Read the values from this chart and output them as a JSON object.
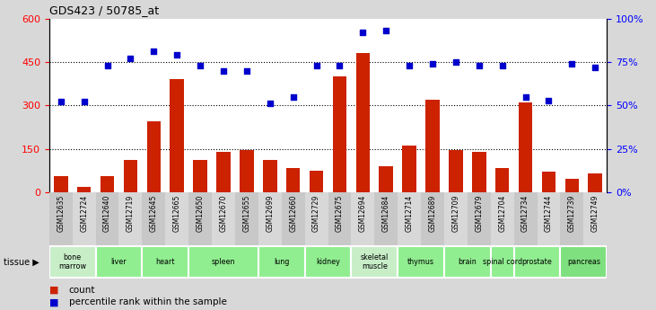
{
  "title": "GDS423 / 50785_at",
  "samples": [
    "GSM12635",
    "GSM12724",
    "GSM12640",
    "GSM12719",
    "GSM12645",
    "GSM12665",
    "GSM12650",
    "GSM12670",
    "GSM12655",
    "GSM12699",
    "GSM12660",
    "GSM12729",
    "GSM12675",
    "GSM12694",
    "GSM12684",
    "GSM12714",
    "GSM12689",
    "GSM12709",
    "GSM12679",
    "GSM12704",
    "GSM12734",
    "GSM12744",
    "GSM12739",
    "GSM12749"
  ],
  "counts": [
    55,
    18,
    55,
    110,
    245,
    390,
    110,
    140,
    145,
    110,
    85,
    75,
    400,
    480,
    90,
    160,
    320,
    145,
    140,
    85,
    310,
    70,
    45,
    65
  ],
  "percentiles": [
    52,
    52,
    73,
    77,
    81,
    79,
    73,
    70,
    70,
    51,
    55,
    73,
    73,
    92,
    93,
    73,
    74,
    75,
    73,
    73,
    55,
    53,
    74,
    72
  ],
  "tissues": [
    {
      "name": "bone\nmarrow",
      "start": 0,
      "end": 2,
      "color": "#C8EEC8"
    },
    {
      "name": "liver",
      "start": 2,
      "end": 4,
      "color": "#90EE90"
    },
    {
      "name": "heart",
      "start": 4,
      "end": 6,
      "color": "#90EE90"
    },
    {
      "name": "spleen",
      "start": 6,
      "end": 9,
      "color": "#90EE90"
    },
    {
      "name": "lung",
      "start": 9,
      "end": 11,
      "color": "#90EE90"
    },
    {
      "name": "kidney",
      "start": 11,
      "end": 13,
      "color": "#90EE90"
    },
    {
      "name": "skeletal\nmuscle",
      "start": 13,
      "end": 15,
      "color": "#C8EEC8"
    },
    {
      "name": "thymus",
      "start": 15,
      "end": 17,
      "color": "#90EE90"
    },
    {
      "name": "brain",
      "start": 17,
      "end": 19,
      "color": "#90EE90"
    },
    {
      "name": "spinal cord",
      "start": 19,
      "end": 20,
      "color": "#90EE90"
    },
    {
      "name": "prostate",
      "start": 20,
      "end": 22,
      "color": "#90EE90"
    },
    {
      "name": "pancreas",
      "start": 22,
      "end": 24,
      "color": "#7EE07E"
    }
  ],
  "ylim_left": [
    0,
    600
  ],
  "ylim_right": [
    0,
    100
  ],
  "yticks_left": [
    0,
    150,
    300,
    450,
    600
  ],
  "yticks_right": [
    0,
    25,
    50,
    75,
    100
  ],
  "bar_color": "#CC2200",
  "scatter_color": "#0000CC",
  "plot_bg_color": "#FFFFFF",
  "fig_bg_color": "#D8D8D8",
  "xticklabel_bg": "#D0D0D0"
}
